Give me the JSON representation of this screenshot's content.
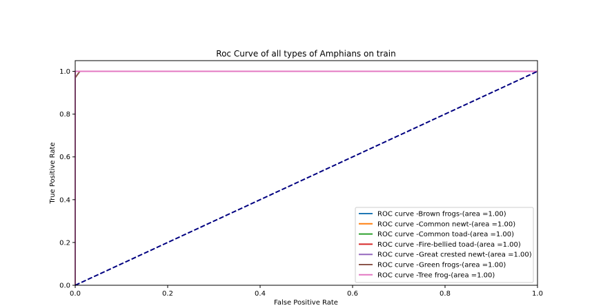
{
  "chart_data": {
    "type": "line",
    "title": "Roc Curve of all types of Amphians on train",
    "xlabel": "False Positive Rate",
    "ylabel": "True Positive Rate",
    "xlim": [
      0.0,
      1.0
    ],
    "ylim": [
      0.0,
      1.05
    ],
    "xticks": [
      "0.0",
      "0.2",
      "0.4",
      "0.6",
      "0.8",
      "1.0"
    ],
    "yticks": [
      "0.0",
      "0.2",
      "0.4",
      "0.6",
      "0.8",
      "1.0"
    ],
    "grid": false,
    "legend_position": "lower-right",
    "series": [
      {
        "name": "ROC curve -Brown frogs-(area =1.00)",
        "color": "#1f77b4",
        "x": [
          0.0,
          0.0,
          1.0
        ],
        "y": [
          0.0,
          1.0,
          1.0
        ]
      },
      {
        "name": "ROC curve -Common newt-(area =1.00)",
        "color": "#ff7f0e",
        "x": [
          0.0,
          0.0,
          1.0
        ],
        "y": [
          0.0,
          1.0,
          1.0
        ]
      },
      {
        "name": "ROC curve -Common toad-(area =1.00)",
        "color": "#2ca02c",
        "x": [
          0.0,
          0.0,
          1.0
        ],
        "y": [
          0.0,
          1.0,
          1.0
        ]
      },
      {
        "name": "ROC curve -Fire-bellied toad-(area =1.00)",
        "color": "#d62728",
        "x": [
          0.0,
          0.0,
          1.0
        ],
        "y": [
          0.0,
          1.0,
          1.0
        ]
      },
      {
        "name": "ROC curve -Great crested newt-(area =1.00)",
        "color": "#9467bd",
        "x": [
          0.0,
          0.0,
          1.0
        ],
        "y": [
          0.0,
          1.0,
          1.0
        ]
      },
      {
        "name": "ROC curve -Green frogs-(area =1.00)",
        "color": "#8c564b",
        "x": [
          0.0,
          0.0,
          0.01,
          1.0
        ],
        "y": [
          0.0,
          0.97,
          1.0,
          1.0
        ]
      },
      {
        "name": "ROC curve -Tree frog-(area =1.00)",
        "color": "#e377c2",
        "x": [
          0.0,
          0.0,
          1.0
        ],
        "y": [
          0.0,
          1.0,
          1.0
        ]
      }
    ],
    "reference_line": {
      "color": "#000080",
      "style": "dashed",
      "x": [
        0.0,
        1.0
      ],
      "y": [
        0.0,
        1.0
      ]
    }
  }
}
